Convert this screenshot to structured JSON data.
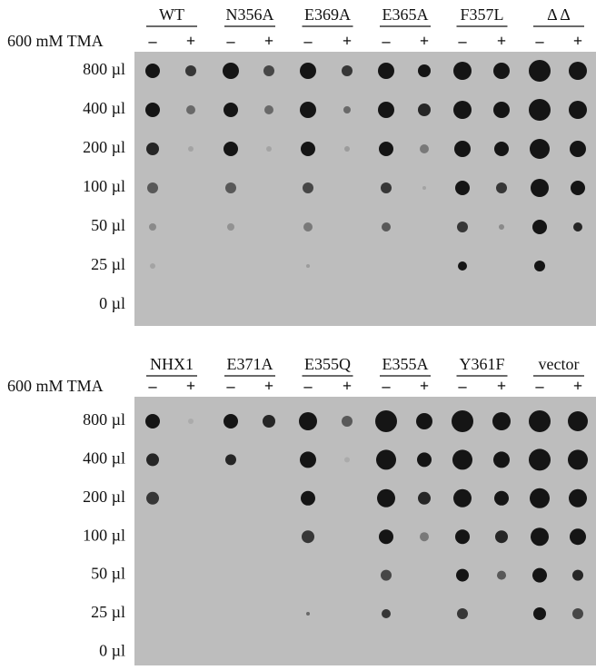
{
  "panels": [
    {
      "treatment_label": "600 mM TMA",
      "signs": [
        "–",
        "+"
      ],
      "strains": [
        "WT",
        "N356A",
        "E369A",
        "E365A",
        "F357L",
        "Δ Δ"
      ],
      "rows": [
        "800 µl",
        "400 µl",
        "200 µl",
        "100 µl",
        "50 µl",
        "25 µl",
        "0 µl"
      ]
    },
    {
      "treatment_label": "600 mM TMA",
      "signs": [
        "–",
        "+"
      ],
      "strains": [
        "NHX1",
        "E371A",
        "E355Q",
        "E355A",
        "Y361F",
        "vector"
      ],
      "rows": [
        "800 µl",
        "400 µl",
        "200 µl",
        "100 µl",
        "50 µl",
        "25 µl",
        "0 µl"
      ]
    }
  ]
}
